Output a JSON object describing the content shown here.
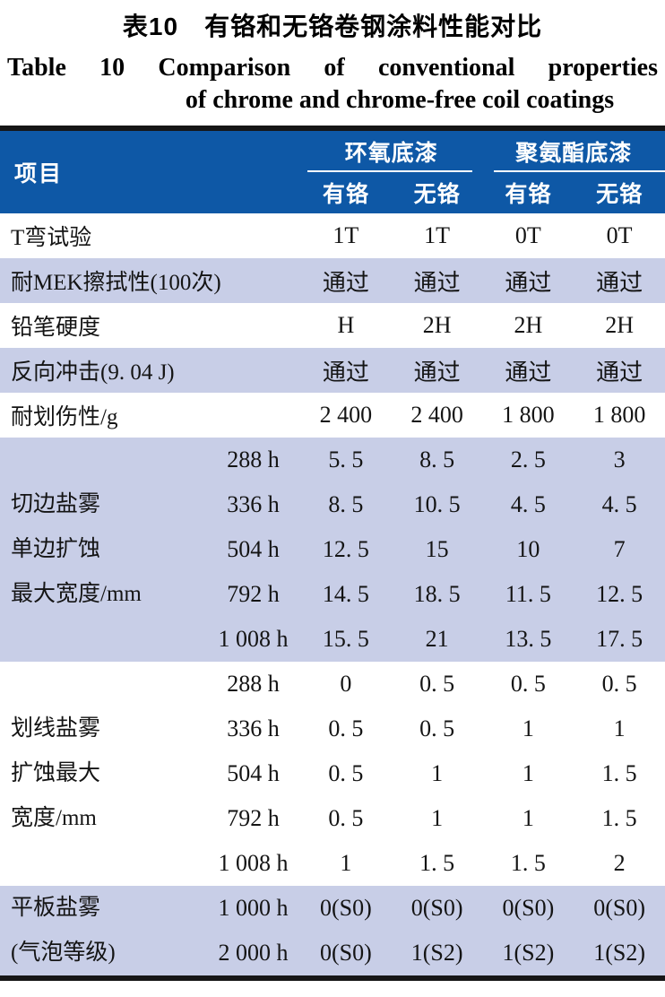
{
  "title": {
    "zh": "表10　有铬和无铬卷钢涂料性能对比",
    "en_line1": "Table 10 Comparison of conventional properties",
    "en_line2": "of chrome and chrome-free coil coatings"
  },
  "table": {
    "colors": {
      "header_bg": "#0e58a6",
      "header_text": "#ffffff",
      "stripe_bg": "#c8cee7",
      "border": "#161616"
    },
    "header": {
      "item_label": "项目",
      "groups": [
        {
          "label": "环氧底漆",
          "subs": [
            "有铬",
            "无铬"
          ]
        },
        {
          "label": "聚氨酯底漆",
          "subs": [
            "有铬",
            "无铬"
          ]
        }
      ]
    },
    "simple_rows": [
      {
        "label": "T弯试验",
        "shaded": false,
        "values": [
          "1T",
          "1T",
          "0T",
          "0T"
        ]
      },
      {
        "label": "耐MEK擦拭性(100次)",
        "shaded": true,
        "values": [
          "通过",
          "通过",
          "通过",
          "通过"
        ]
      },
      {
        "label": "铅笔硬度",
        "shaded": false,
        "values": [
          "H",
          "2H",
          "2H",
          "2H"
        ]
      },
      {
        "label": "反向冲击(9. 04 J)",
        "shaded": true,
        "values": [
          "通过",
          "通过",
          "通过",
          "通过"
        ]
      },
      {
        "label": "耐划伤性/g",
        "shaded": false,
        "values": [
          "2 400",
          "2 400",
          "1 800",
          "1 800"
        ]
      }
    ],
    "sections": [
      {
        "label_lines": [
          "切边盐雾",
          "单边扩蚀",
          "最大宽度/mm"
        ],
        "shaded": true,
        "rows": [
          {
            "time": "288 h",
            "values": [
              "5. 5",
              "8. 5",
              "2. 5",
              "3"
            ]
          },
          {
            "time": "336 h",
            "values": [
              "8. 5",
              "10. 5",
              "4. 5",
              "4. 5"
            ]
          },
          {
            "time": "504 h",
            "values": [
              "12. 5",
              "15",
              "10",
              "7"
            ]
          },
          {
            "time": "792 h",
            "values": [
              "14. 5",
              "18. 5",
              "11. 5",
              "12. 5"
            ]
          },
          {
            "time": "1 008 h",
            "values": [
              "15. 5",
              "21",
              "13. 5",
              "17. 5"
            ]
          }
        ]
      },
      {
        "label_lines": [
          "划线盐雾",
          "扩蚀最大",
          "宽度/mm"
        ],
        "shaded": false,
        "rows": [
          {
            "time": "288 h",
            "values": [
              "0",
              "0. 5",
              "0. 5",
              "0. 5"
            ]
          },
          {
            "time": "336 h",
            "values": [
              "0. 5",
              "0. 5",
              "1",
              "1"
            ]
          },
          {
            "time": "504 h",
            "values": [
              "0. 5",
              "1",
              "1",
              "1. 5"
            ]
          },
          {
            "time": "792 h",
            "values": [
              "0. 5",
              "1",
              "1",
              "1. 5"
            ]
          },
          {
            "time": "1 008 h",
            "values": [
              "1",
              "1. 5",
              "1. 5",
              "2"
            ]
          }
        ]
      },
      {
        "label_lines": [
          "平板盐雾",
          "(气泡等级)"
        ],
        "shaded": true,
        "rows": [
          {
            "time": "1 000 h",
            "values": [
              "0(S0)",
              "0(S0)",
              "0(S0)",
              "0(S0)"
            ]
          },
          {
            "time": "2 000 h",
            "values": [
              "0(S0)",
              "1(S2)",
              "1(S2)",
              "1(S2)"
            ]
          }
        ]
      }
    ]
  }
}
